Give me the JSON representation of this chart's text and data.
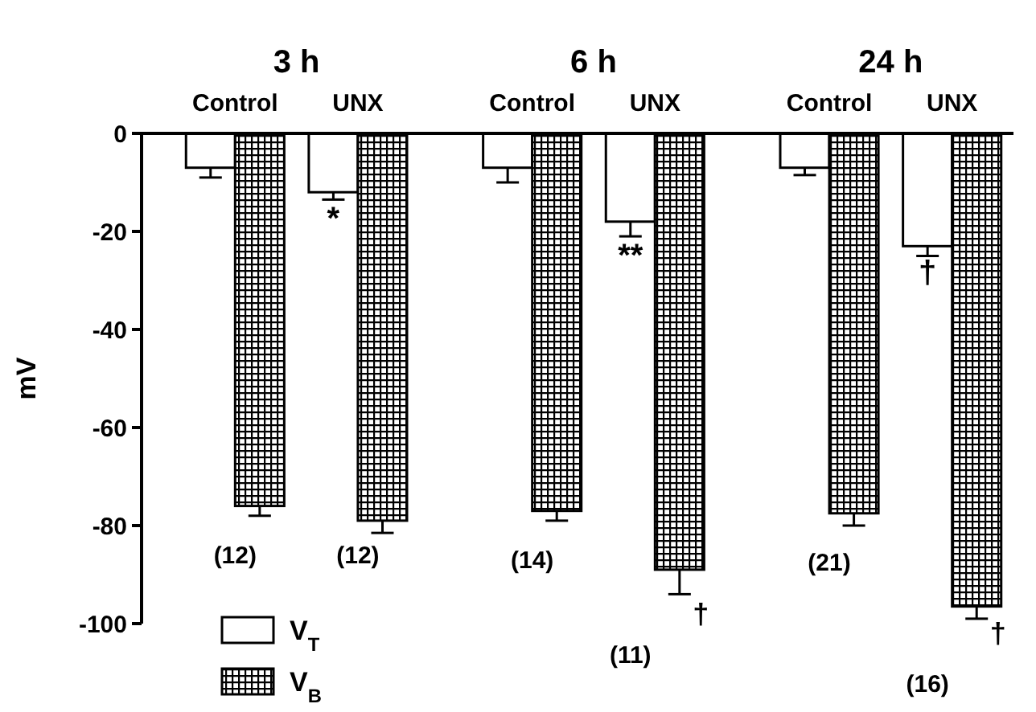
{
  "chart_data": {
    "type": "bar",
    "ylabel": "mV",
    "categories": [
      "Control",
      "UNX",
      "Control",
      "UNX",
      "Control",
      "UNX"
    ],
    "series": [
      {
        "name": "V$_{T}$",
        "color": "#ffffff",
        "values": [
          -7,
          -12,
          -7,
          -18,
          -7,
          -23
        ],
        "errors": [
          2,
          1.5,
          3,
          3,
          1.5,
          2
        ]
      },
      {
        "name": "V$_{B}$",
        "color": "#000000",
        "values": [
          -76,
          -79,
          -77,
          -89,
          -77.5,
          -96.5
        ],
        "errors": [
          2,
          2.5,
          2,
          5,
          2.5,
          2.5
        ]
      }
    ],
    "ylim": [
      -100,
      0
    ],
    "yticks": [
      0,
      -20,
      -40,
      -60,
      -80,
      -100
    ],
    "legend": "bottom left",
    "grid": false,
    "annotations": [
      "3 h",
      "6 h",
      "24 h",
      "*",
      "**",
      "†",
      "†",
      "†",
      "(12)",
      "(12)",
      "(14)",
      "(11)",
      "(21)",
      "(16)"
    ]
  }
}
